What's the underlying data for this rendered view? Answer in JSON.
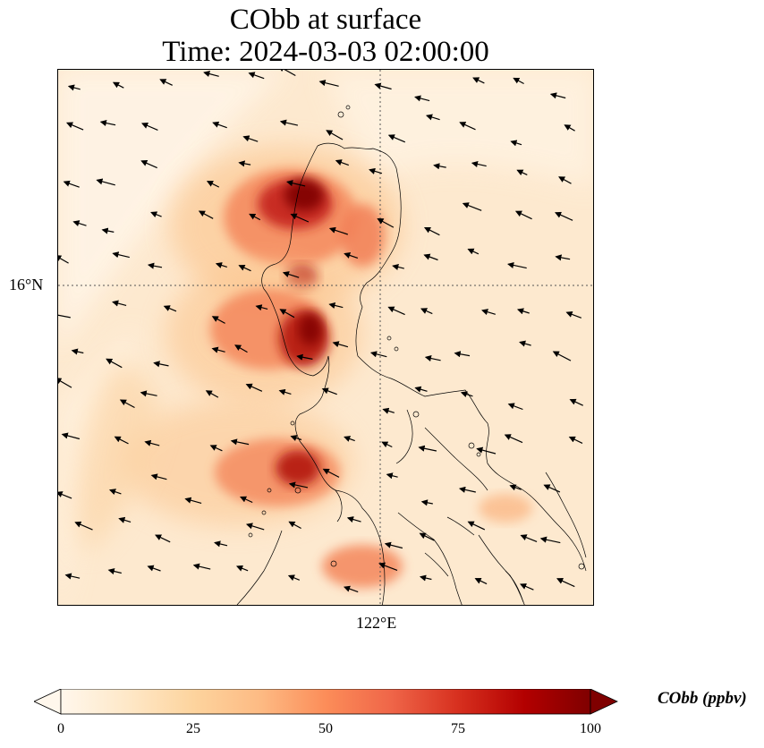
{
  "title": {
    "line1": "CObb at surface",
    "line2": "Time: 2024-03-03 02:00:00"
  },
  "axes": {
    "lat_tick": "16°N",
    "lon_tick": "122°E"
  },
  "colorbar": {
    "label": "CObb (ppbv)",
    "ticks": [
      "0",
      "25",
      "50",
      "75",
      "100"
    ],
    "min": 0,
    "max": 100,
    "colormap": "OrRd",
    "extend": "both"
  },
  "colors": {
    "background": "#fde9cf",
    "low": "#fff7ec",
    "high": "#7f0000",
    "coastline": "#000000",
    "gridline": "#555555",
    "wind_arrow": "#000000"
  },
  "map": {
    "variable": "CObb",
    "level": "surface",
    "gridlines": "dotted",
    "overlay": "wind vectors"
  }
}
